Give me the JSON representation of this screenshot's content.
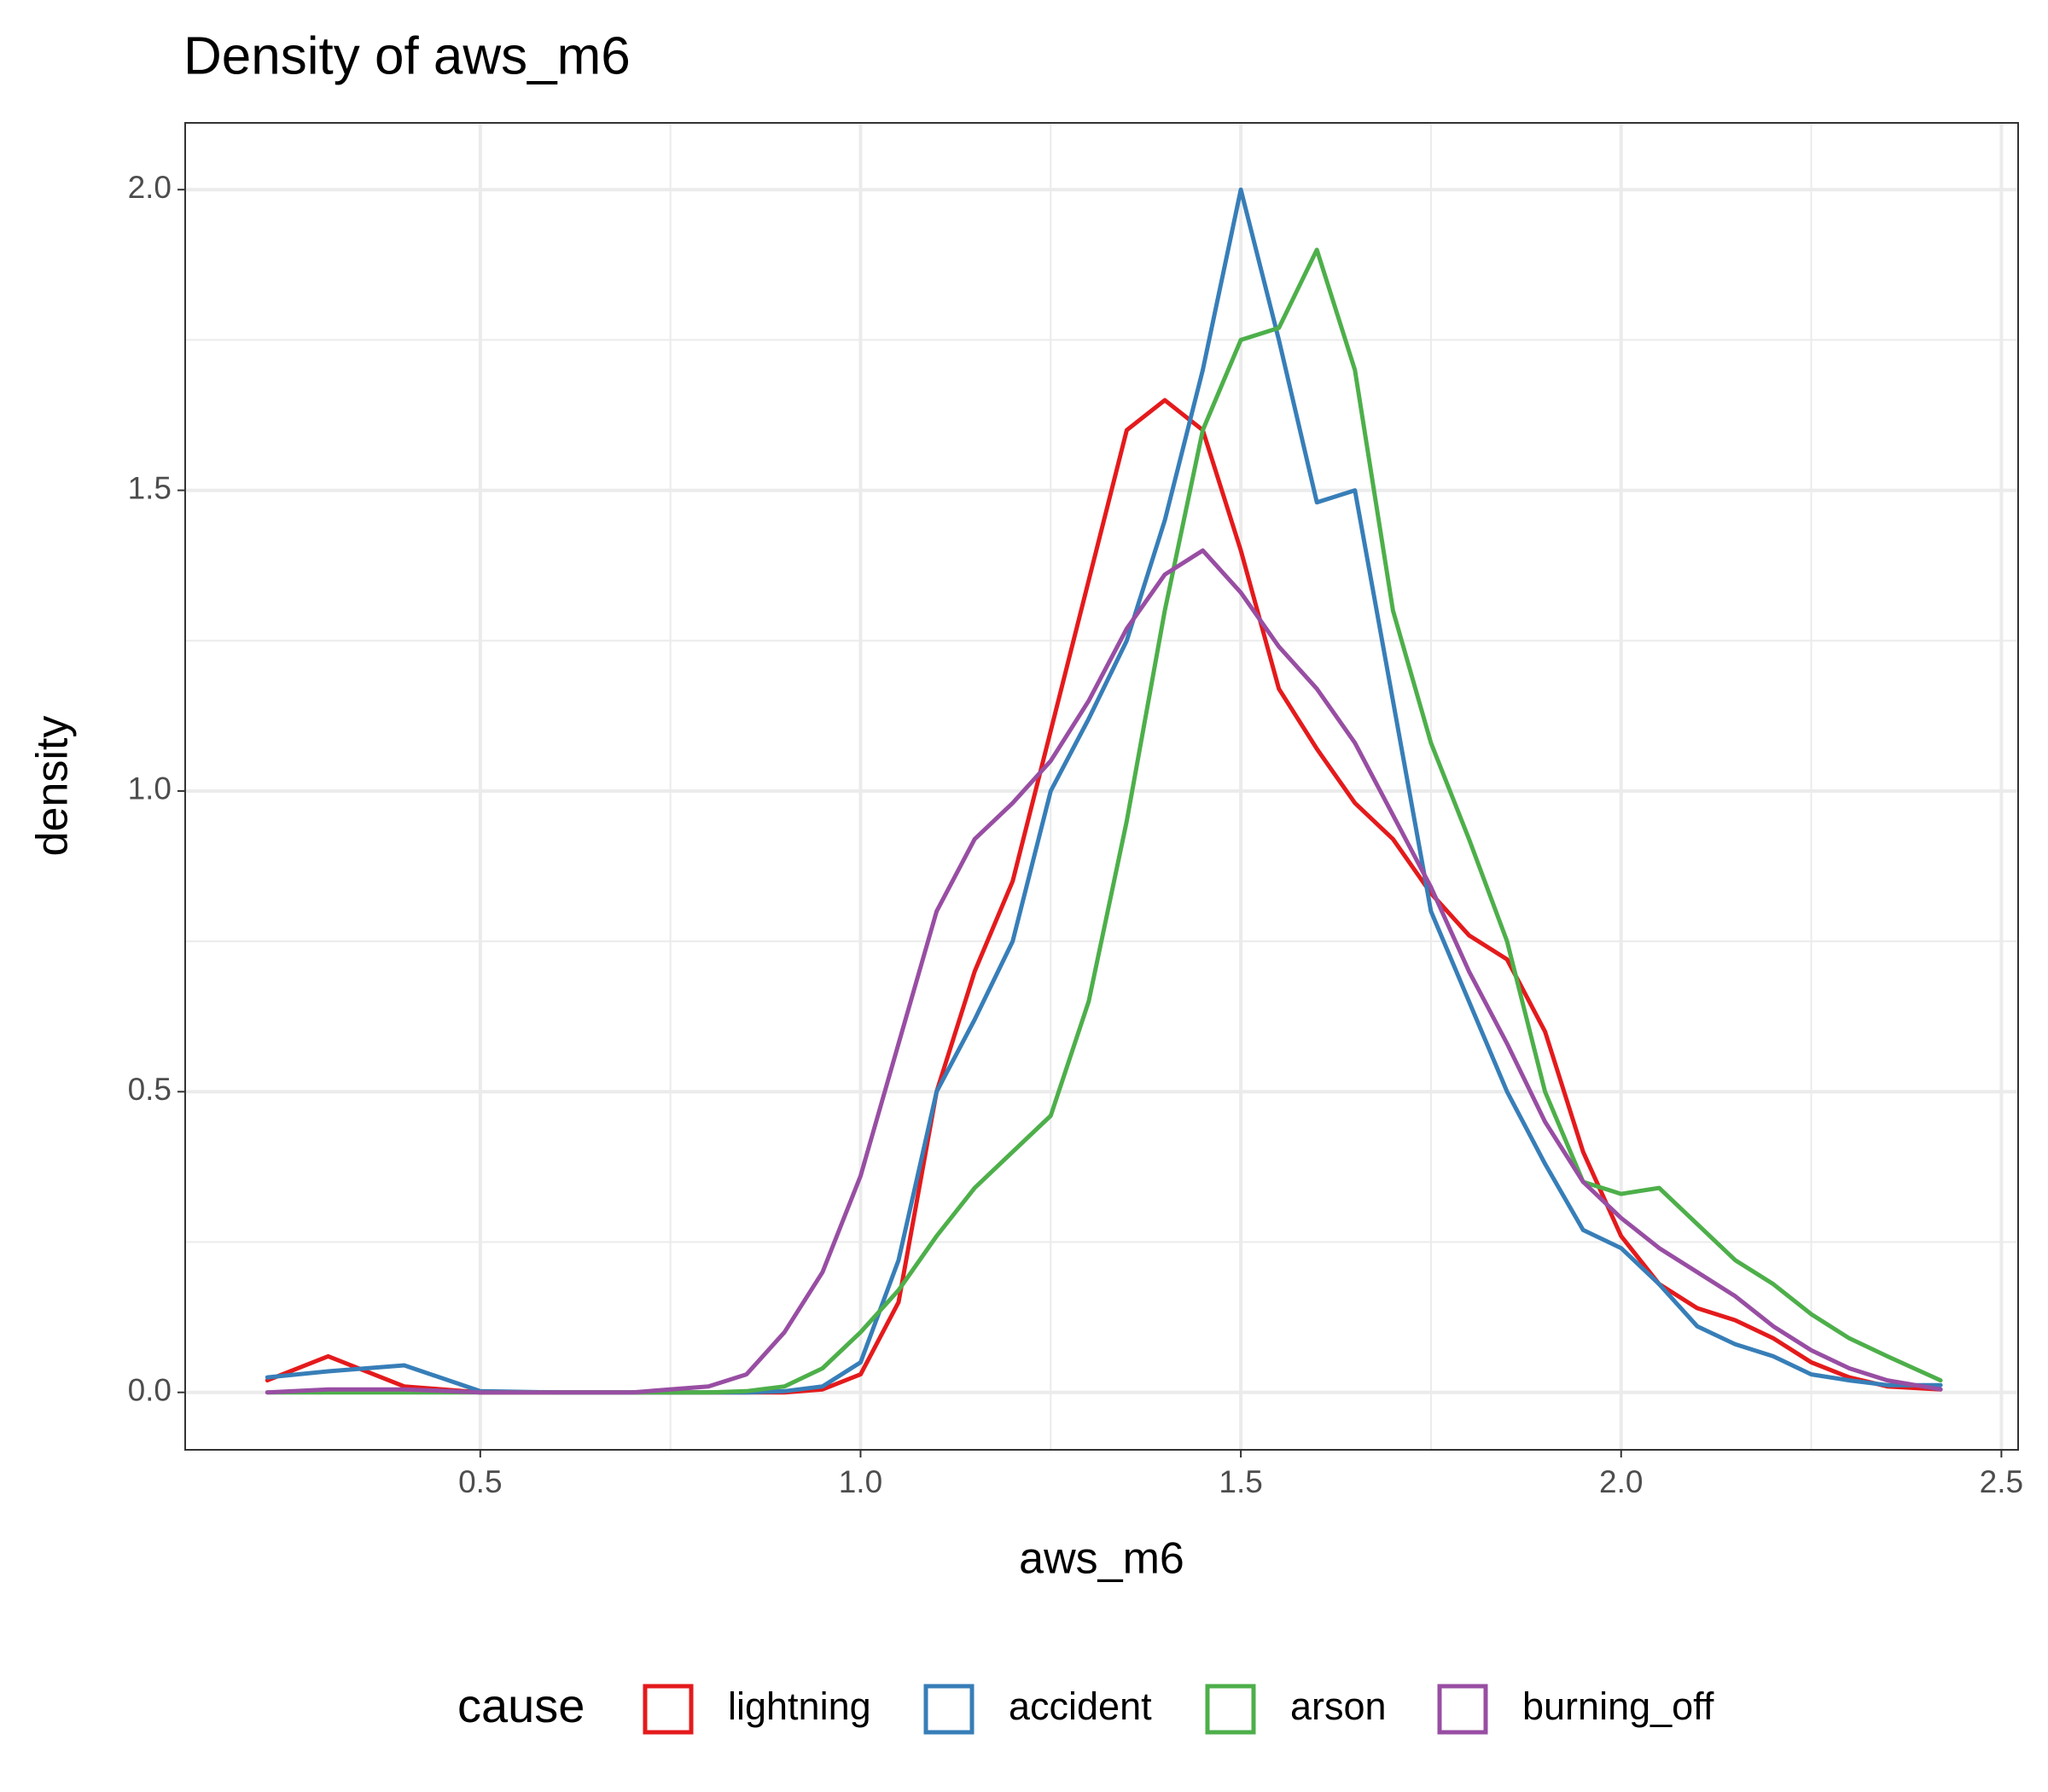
{
  "chart_data": {
    "type": "line",
    "title": "Density of aws_m6",
    "x_label": "aws_m6",
    "y_label": "density",
    "legend_title": "cause",
    "legend_position": "bottom",
    "grid": true,
    "x": [
      0.22,
      0.3,
      0.4,
      0.5,
      0.6,
      0.7,
      0.8,
      0.85,
      0.9,
      0.95,
      1.0,
      1.05,
      1.1,
      1.15,
      1.2,
      1.25,
      1.3,
      1.35,
      1.4,
      1.45,
      1.5,
      1.55,
      1.6,
      1.65,
      1.7,
      1.75,
      1.8,
      1.85,
      1.9,
      1.95,
      2.0,
      2.05,
      2.1,
      2.15,
      2.2,
      2.25,
      2.3,
      2.35,
      2.42
    ],
    "series": [
      {
        "name": "lightning",
        "color": "#e41a1c",
        "values": [
          0.02,
          0.06,
          0.01,
          0,
          0,
          0,
          0,
          0,
          0,
          0.005,
          0.03,
          0.15,
          0.5,
          0.7,
          0.85,
          1.1,
          1.35,
          1.6,
          1.65,
          1.6,
          1.4,
          1.17,
          1.07,
          0.98,
          0.92,
          0.83,
          0.76,
          0.72,
          0.6,
          0.4,
          0.26,
          0.18,
          0.14,
          0.12,
          0.09,
          0.05,
          0.025,
          0.01,
          0.005
        ]
      },
      {
        "name": "accident",
        "color": "#377eb8",
        "values": [
          0.025,
          0.035,
          0.045,
          0.002,
          0,
          0,
          0,
          0,
          0.002,
          0.01,
          0.05,
          0.22,
          0.5,
          0.62,
          0.75,
          1.0,
          1.12,
          1.25,
          1.45,
          1.7,
          2.0,
          1.75,
          1.48,
          1.5,
          1.15,
          0.8,
          0.65,
          0.5,
          0.38,
          0.27,
          0.24,
          0.18,
          0.11,
          0.08,
          0.06,
          0.03,
          0.02,
          0.012,
          0.012
        ]
      },
      {
        "name": "arson",
        "color": "#4daf4a",
        "values": [
          0,
          0,
          0,
          0,
          0,
          0,
          0,
          0.002,
          0.01,
          0.04,
          0.1,
          0.17,
          0.26,
          0.34,
          0.4,
          0.46,
          0.65,
          0.95,
          1.3,
          1.6,
          1.75,
          1.77,
          1.9,
          1.7,
          1.3,
          1.08,
          0.92,
          0.75,
          0.5,
          0.35,
          0.33,
          0.34,
          0.28,
          0.22,
          0.18,
          0.13,
          0.09,
          0.06,
          0.02
        ]
      },
      {
        "name": "burning_off",
        "color": "#984ea3",
        "values": [
          0,
          0.005,
          0.005,
          0,
          0,
          0,
          0.01,
          0.03,
          0.1,
          0.2,
          0.36,
          0.58,
          0.8,
          0.92,
          0.98,
          1.05,
          1.15,
          1.27,
          1.36,
          1.4,
          1.33,
          1.24,
          1.17,
          1.08,
          0.96,
          0.84,
          0.7,
          0.58,
          0.45,
          0.35,
          0.29,
          0.24,
          0.2,
          0.16,
          0.11,
          0.07,
          0.04,
          0.02,
          0.005
        ]
      }
    ],
    "xlim": [
      0.112,
      2.522
    ],
    "xticks": [
      0.5,
      {
        "value": 1,
        "label": "1.0"
      },
      1.5,
      {
        "value": 2,
        "label": "2.0"
      },
      2.5
    ],
    "ylim": [
      -0.0955,
      2.111
    ],
    "yticks": [
      {
        "value": 0,
        "label": "0.0"
      },
      0.5,
      {
        "value": 1,
        "label": "1.0"
      },
      1.5,
      {
        "value": 2,
        "label": "2.0"
      }
    ]
  }
}
